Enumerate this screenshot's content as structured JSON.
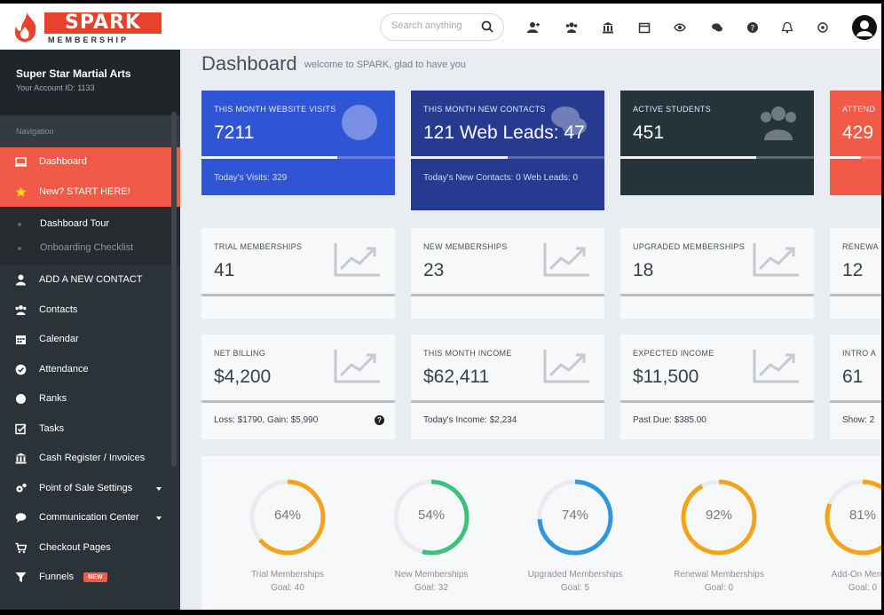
{
  "brand": {
    "name": "SPARK",
    "sub": "MEMBERSHIP"
  },
  "search": {
    "placeholder": "Search anything"
  },
  "topbar_icons": [
    "add-contact-icon",
    "contacts-icon",
    "bank-icon",
    "calendar-icon",
    "eye-icon",
    "chat-icon",
    "help-icon",
    "bell-icon",
    "settings-icon"
  ],
  "account": {
    "name": "Super Star Martial Arts",
    "id_line": "Your Account ID: 1133"
  },
  "sidebar": {
    "nav_heading": "Navigation",
    "primary": [
      {
        "label": "Dashboard",
        "icon": "monitor-icon"
      },
      {
        "label": "New? START HERE!",
        "icon": "star-icon"
      }
    ],
    "sub": [
      {
        "label": "Dashboard Tour"
      },
      {
        "label": "Onboarding Checklist"
      }
    ],
    "items": [
      {
        "label": "ADD A NEW CONTACT",
        "icon": "user-icon"
      },
      {
        "label": "Contacts",
        "icon": "users-icon"
      },
      {
        "label": "Calendar",
        "icon": "calendar-icon"
      },
      {
        "label": "Attendance",
        "icon": "check-circle-icon"
      },
      {
        "label": "Ranks",
        "icon": "badge-icon"
      },
      {
        "label": "Tasks",
        "icon": "tasks-icon"
      },
      {
        "label": "Cash Register / Invoices",
        "icon": "bank-icon"
      },
      {
        "label": "Point of Sale Settings",
        "icon": "cogs-icon"
      },
      {
        "label": "Communication Center",
        "icon": "comments-icon"
      },
      {
        "label": "Checkout Pages",
        "icon": "cart-icon"
      },
      {
        "label": "Funnels",
        "icon": "funnel-icon",
        "badge": "NEW"
      }
    ]
  },
  "page": {
    "title": "Dashboard",
    "subtitle": "welcome to SPARK, glad to have you"
  },
  "stats": [
    {
      "label": "THIS MONTH WEBSITE VISITS",
      "value": "7211",
      "foot": "Today's Visits: 329",
      "color": "#2f55d4",
      "progress": 0.7
    },
    {
      "label": "THIS MONTH NEW CONTACTS",
      "value": "121  Web Leads: 47",
      "foot": "Today's New Contacts: 0  Web Leads: 0",
      "color": "#263a8f",
      "progress": 0.5
    },
    {
      "label": "ACTIVE STUDENTS",
      "value": "451",
      "foot": "",
      "color": "#24343a",
      "progress": 0.7
    },
    {
      "label": "ATTEND",
      "value": "429",
      "foot": "",
      "color": "#f25a48",
      "progress": 0.6
    }
  ],
  "memberships": [
    {
      "label": "TRIAL MEMBERSHIPS",
      "value": "41"
    },
    {
      "label": "NEW MEMBERSHIPS",
      "value": "23"
    },
    {
      "label": "UPGRADED MEMBERSHIPS",
      "value": "18"
    },
    {
      "label": "RENEWA",
      "value": "12"
    }
  ],
  "finance": [
    {
      "label": "NET BILLING",
      "value": "$4,200",
      "foot": "Loss: $1790, Gain: $5,990",
      "help": "?"
    },
    {
      "label": "THIS MONTH INCOME",
      "value": "$62,411",
      "foot": "Today's Income: $2,234"
    },
    {
      "label": "EXPECTED INCOME",
      "value": "$11,500",
      "foot": "Past Due: $385.00"
    },
    {
      "label": "INTRO A",
      "value": "61",
      "foot": "Show: 2"
    }
  ],
  "goals": [
    {
      "pct": "64%",
      "fraction": 0.64,
      "name": "Trial Memberships",
      "goal": "Goal: 40",
      "color": "#f5a31a"
    },
    {
      "pct": "54%",
      "fraction": 0.54,
      "name": "New Memberships",
      "goal": "Goal: 32",
      "color": "#3cc37a"
    },
    {
      "pct": "74%",
      "fraction": 0.74,
      "name": "Upgraded Memberships",
      "goal": "Goal: 5",
      "color": "#2f97e0"
    },
    {
      "pct": "92%",
      "fraction": 0.92,
      "name": "Renewal Memberships",
      "goal": "Goal: 0",
      "color": "#f5a31a"
    },
    {
      "pct": "81%",
      "fraction": 0.81,
      "name": "Add-On Membe",
      "goal": "Goal: 0",
      "color": "#f5a31a"
    }
  ]
}
